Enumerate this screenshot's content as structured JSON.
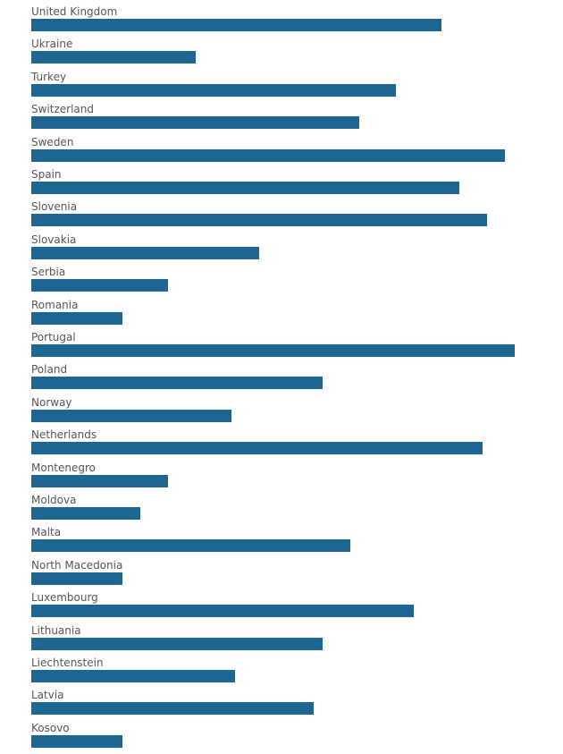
{
  "chart_data": {
    "type": "bar",
    "orientation": "horizontal",
    "title": "",
    "xlabel": "",
    "ylabel": "",
    "xlim": [
      0,
      28
    ],
    "grid": false,
    "bar_color": "#1d6691",
    "label_color": "#555555",
    "categories": [
      "United Kingdom",
      "Ukraine",
      "Turkey",
      "Switzerland",
      "Sweden",
      "Spain",
      "Slovenia",
      "Slovakia",
      "Serbia",
      "Romania",
      "Portugal",
      "Poland",
      "Norway",
      "Netherlands",
      "Montenegro",
      "Moldova",
      "Malta",
      "North Macedonia",
      "Luxembourg",
      "Lithuania",
      "Liechtenstein",
      "Latvia",
      "Kosovo"
    ],
    "values": [
      22.5,
      9,
      20,
      18,
      26,
      23.5,
      25,
      12.5,
      7.5,
      5,
      26.5,
      16,
      11,
      24.75,
      7.5,
      6,
      17.5,
      5,
      21,
      16,
      11.2,
      15.5,
      5
    ]
  }
}
